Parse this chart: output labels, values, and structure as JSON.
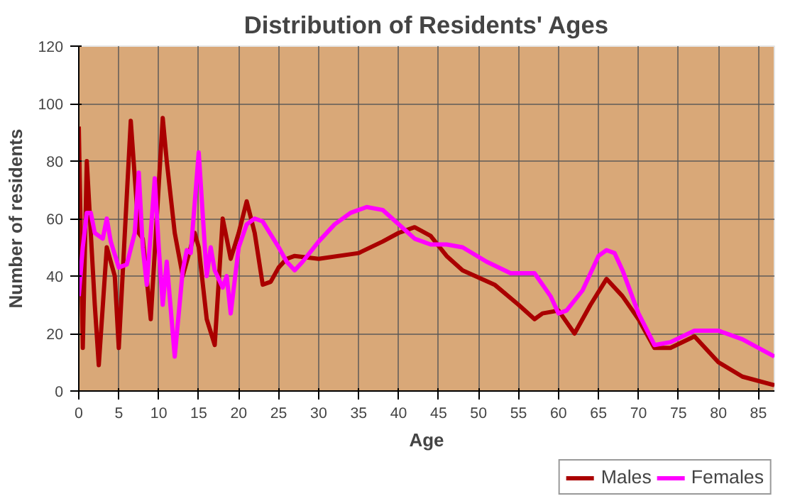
{
  "chart_data": {
    "type": "line",
    "title": "Distribution of Residents' Ages",
    "xlabel": "Age",
    "ylabel": "Number of residents",
    "xlim": [
      0,
      87
    ],
    "ylim": [
      0,
      120
    ],
    "xticks": [
      0,
      5,
      10,
      15,
      20,
      25,
      30,
      35,
      40,
      45,
      50,
      55,
      60,
      65,
      70,
      75,
      80,
      85
    ],
    "yticks": [
      0,
      20,
      40,
      60,
      80,
      100,
      120
    ],
    "grid": true,
    "legend": "bottom right",
    "marker": "none",
    "line_style": "solid",
    "series": [
      {
        "name": "Males",
        "color": "#aa0000",
        "x": [
          0,
          0.5,
          1,
          2,
          2.5,
          3.5,
          4.5,
          5,
          6.5,
          7.5,
          8,
          9,
          10.5,
          11,
          12,
          13,
          14,
          14.5,
          15,
          16,
          17,
          18,
          19,
          20,
          21,
          22,
          23,
          24,
          25,
          26,
          27,
          30,
          35,
          38,
          40,
          42,
          44,
          46,
          48,
          52,
          55,
          57,
          58,
          60,
          62,
          64,
          66,
          68,
          70,
          72,
          74,
          77,
          80,
          83,
          87
        ],
        "values": [
          92,
          15,
          80,
          30,
          9,
          50,
          40,
          15,
          94,
          55,
          53,
          25,
          95,
          80,
          55,
          40,
          50,
          55,
          50,
          25,
          16,
          60,
          46,
          55,
          66,
          55,
          37,
          38,
          43,
          46,
          47,
          46,
          48,
          52,
          55,
          57,
          54,
          47,
          42,
          37,
          30,
          25,
          27,
          28,
          20,
          30,
          39,
          33,
          25,
          15,
          15,
          19,
          10,
          5,
          2
        ]
      },
      {
        "name": "Females",
        "color": "#ff00ff",
        "x": [
          0,
          0.5,
          1,
          1.5,
          2,
          3,
          3.5,
          4,
          5,
          6,
          7,
          7.5,
          8,
          8.5,
          9,
          9.5,
          10,
          10.5,
          11,
          12,
          13,
          13.5,
          14,
          15,
          16,
          16.5,
          17,
          18,
          18.5,
          19,
          20,
          21,
          22,
          23,
          25,
          26,
          27,
          28,
          30,
          32,
          34,
          36,
          38,
          40,
          42,
          44,
          46,
          48,
          51,
          54,
          57,
          59,
          60,
          61,
          63,
          65,
          66,
          67,
          68,
          70,
          72,
          74,
          77,
          80,
          83,
          87
        ],
        "values": [
          33,
          50,
          62,
          62,
          55,
          53,
          60,
          52,
          43,
          44,
          55,
          76,
          50,
          37,
          55,
          74,
          50,
          30,
          45,
          12,
          42,
          49,
          48,
          83,
          40,
          50,
          42,
          36,
          40,
          27,
          50,
          58,
          60,
          59,
          50,
          45,
          42,
          45,
          52,
          58,
          62,
          64,
          63,
          58,
          53,
          51,
          51,
          50,
          45,
          41,
          41,
          33,
          27,
          28,
          35,
          47,
          49,
          48,
          42,
          27,
          16,
          17,
          21,
          21,
          18,
          12
        ]
      }
    ]
  }
}
